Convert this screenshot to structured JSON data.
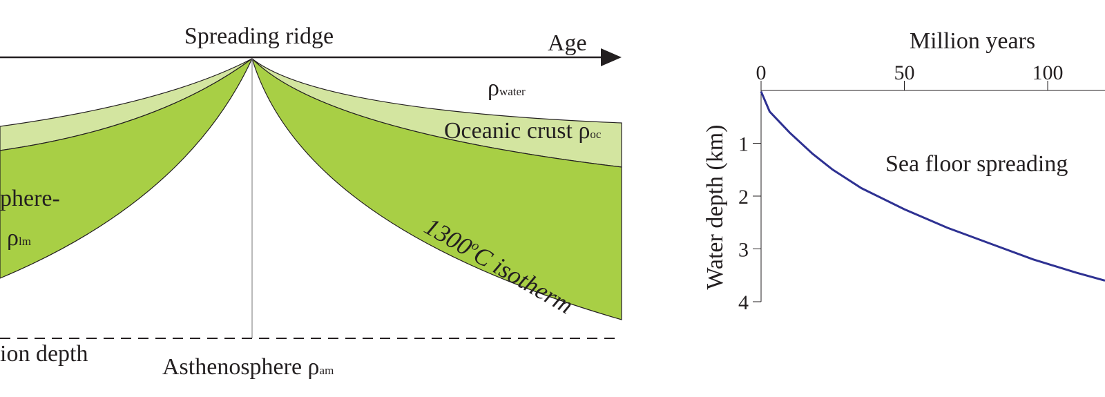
{
  "cross_section": {
    "ridge_label": "Spreading ridge",
    "age_label": "Age",
    "water_symbol": "ρ",
    "water_subscript": "water",
    "crust_label": "Oceanic crust ρ",
    "crust_subscript": "oc",
    "lithosphere_label_fragment": "phere-",
    "lithosphere_symbol": "ρ",
    "lithosphere_subscript": "lm",
    "isotherm_label": "1300°C isotherm",
    "isotherm_prefix": "1300",
    "isotherm_degree": "o",
    "isotherm_suffix": "C isotherm",
    "compensation_fragment": "ion depth",
    "asthenosphere_label": "Asthenosphere ρ",
    "asthenosphere_subscript": "am",
    "colors": {
      "crust": "#d3e5a0",
      "mantle_lithosphere": "#a8cf45",
      "outline": "#231f20"
    }
  },
  "chart_data": {
    "type": "line",
    "title": "",
    "xlabel": "Million years",
    "ylabel": "Water depth (km)",
    "x_ticks": [
      0,
      50,
      100
    ],
    "y_ticks": [
      1,
      2,
      3,
      4
    ],
    "xlim": [
      0,
      120
    ],
    "ylim": [
      0,
      4
    ],
    "y_inverted": true,
    "annotation": "Sea floor spreading",
    "series": [
      {
        "color": "#2e3192",
        "points": [
          [
            0,
            0.02
          ],
          [
            3,
            0.4
          ],
          [
            10,
            0.8
          ],
          [
            18,
            1.2
          ],
          [
            25,
            1.5
          ],
          [
            35,
            1.85
          ],
          [
            50,
            2.25
          ],
          [
            65,
            2.6
          ],
          [
            80,
            2.9
          ],
          [
            95,
            3.2
          ],
          [
            110,
            3.45
          ],
          [
            120,
            3.6
          ]
        ]
      }
    ]
  }
}
